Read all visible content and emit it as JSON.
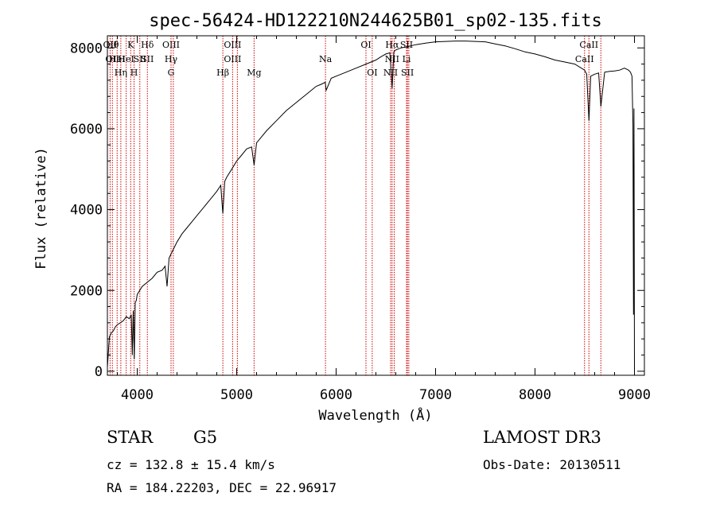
{
  "chart_data": {
    "type": "line",
    "title": "spec-56424-HD122210N244625B01_sp02-135.fits",
    "xlabel": "Wavelength (Å)",
    "ylabel": "Flux (relative)",
    "xlim": [
      3700,
      9100
    ],
    "ylim": [
      -100,
      8300
    ],
    "xticks": [
      4000,
      5000,
      6000,
      7000,
      8000,
      9000
    ],
    "yticks": [
      0,
      2000,
      4000,
      6000,
      8000
    ],
    "series": [
      {
        "name": "spectrum",
        "x": [
          3700,
          3720,
          3740,
          3760,
          3780,
          3800,
          3830,
          3860,
          3890,
          3920,
          3940,
          3950,
          3960,
          3970,
          3980,
          3990,
          4000,
          4050,
          4100,
          4150,
          4200,
          4250,
          4280,
          4300,
          4320,
          4340,
          4360,
          4400,
          4450,
          4500,
          4550,
          4600,
          4650,
          4700,
          4750,
          4800,
          4840,
          4861,
          4880,
          4900,
          4950,
          5000,
          5050,
          5100,
          5150,
          5175,
          5200,
          5250,
          5300,
          5400,
          5500,
          5600,
          5700,
          5800,
          5850,
          5890,
          5900,
          5950,
          6000,
          6100,
          6200,
          6300,
          6400,
          6450,
          6500,
          6540,
          6563,
          6580,
          6600,
          6650,
          6700,
          6800,
          6900,
          7000,
          7100,
          7200,
          7300,
          7400,
          7500,
          7600,
          7700,
          7800,
          7900,
          8000,
          8100,
          8200,
          8300,
          8400,
          8498,
          8520,
          8542,
          8560,
          8600,
          8640,
          8662,
          8700,
          8750,
          8800,
          8850,
          8900,
          8940,
          8960,
          8975,
          8985,
          8990,
          8995,
          9000
        ],
        "values": [
          100,
          850,
          950,
          1000,
          1100,
          1150,
          1200,
          1250,
          1350,
          1300,
          1400,
          400,
          1500,
          300,
          1700,
          1750,
          1900,
          2100,
          2200,
          2300,
          2450,
          2500,
          2600,
          2100,
          2800,
          2900,
          3000,
          3200,
          3400,
          3550,
          3700,
          3850,
          4000,
          4150,
          4300,
          4450,
          4600,
          3900,
          4700,
          4800,
          5000,
          5200,
          5350,
          5500,
          5550,
          5100,
          5650,
          5800,
          5950,
          6200,
          6450,
          6650,
          6850,
          7050,
          7100,
          7150,
          6950,
          7250,
          7300,
          7400,
          7500,
          7600,
          7700,
          7780,
          7850,
          7880,
          7000,
          7900,
          7950,
          8000,
          8020,
          8080,
          8120,
          8150,
          8160,
          8170,
          8170,
          8160,
          8150,
          8100,
          8050,
          7980,
          7900,
          7850,
          7780,
          7700,
          7650,
          7600,
          7450,
          7350,
          6200,
          7300,
          7350,
          7380,
          6550,
          7400,
          7420,
          7430,
          7450,
          7500,
          7450,
          7400,
          7300,
          6100,
          1400,
          6500,
          0
        ]
      }
    ],
    "lines": [
      {
        "x": 3727,
        "labels": [
          "OII"
        ]
      },
      {
        "x": 3750,
        "labels": [
          "Hθ",
          "OII"
        ]
      },
      {
        "x": 3798,
        "labels": [
          "",
          "HeI"
        ]
      },
      {
        "x": 3835,
        "labels": [
          "",
          "",
          "Hη"
        ]
      },
      {
        "x": 3889,
        "labels": [
          "",
          "HeI"
        ]
      },
      {
        "x": 3934,
        "labels": [
          "K"
        ]
      },
      {
        "x": 3968,
        "labels": [
          "",
          "",
          "H"
        ]
      },
      {
        "x": 4026,
        "labels": [
          "",
          "SII"
        ]
      },
      {
        "x": 4102,
        "labels": [
          "Hδ",
          "SII"
        ]
      },
      {
        "x": 4340,
        "labels": [
          "OIII",
          "Hγ",
          "G"
        ]
      },
      {
        "x": 4363,
        "labels": []
      },
      {
        "x": 4861,
        "labels": [
          "",
          "",
          "Hβ"
        ]
      },
      {
        "x": 4959,
        "labels": [
          "OIII",
          "OIII"
        ]
      },
      {
        "x": 5007,
        "labels": []
      },
      {
        "x": 5175,
        "labels": [
          "",
          "",
          "Mg"
        ]
      },
      {
        "x": 5893,
        "labels": [
          "",
          "Na"
        ]
      },
      {
        "x": 6300,
        "labels": [
          "OI"
        ]
      },
      {
        "x": 6363,
        "labels": [
          "",
          "",
          "OI"
        ]
      },
      {
        "x": 6548,
        "labels": [
          "",
          "",
          "NII"
        ]
      },
      {
        "x": 6563,
        "labels": [
          "Hα",
          "NII"
        ]
      },
      {
        "x": 6584,
        "labels": []
      },
      {
        "x": 6708,
        "labels": [
          "SII",
          "Li"
        ]
      },
      {
        "x": 6717,
        "labels": [
          "",
          "",
          "SII"
        ]
      },
      {
        "x": 6731,
        "labels": []
      },
      {
        "x": 8498,
        "labels": [
          "",
          "CaII"
        ]
      },
      {
        "x": 8542,
        "labels": [
          "CaII"
        ]
      },
      {
        "x": 8662,
        "labels": []
      }
    ]
  },
  "info": {
    "class_label": "STAR",
    "subclass": "G5",
    "survey": "LAMOST DR3",
    "cz": "cz = 132.8 ± 15.4 km/s",
    "obs_date": "Obs-Date: 20130511",
    "coords": "RA = 184.22203, DEC =  22.96917"
  },
  "colors": {
    "axis": "#000000",
    "spectrum": "#000000",
    "line_marker": "#cc0000"
  }
}
